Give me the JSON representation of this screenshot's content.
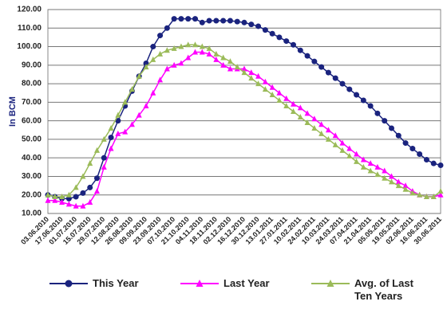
{
  "chart_data": {
    "type": "line",
    "y_label": "In BCM",
    "categories": [
      "03.06.2010",
      null,
      "17.06.2010",
      null,
      "01.07.2010",
      null,
      "15.07.2010",
      null,
      "29.07.2010",
      null,
      "12.08.2010",
      null,
      "26.08.2010",
      null,
      "09.09.2010",
      null,
      "23.09.2010",
      null,
      "07.10.2010",
      null,
      "21.10.2010",
      null,
      "04.11.2010",
      null,
      "18.11.2010",
      null,
      "02.12.2010",
      null,
      "16.12.2010",
      null,
      "30.12.2010",
      null,
      "13.01.2011",
      null,
      "27.01.2011",
      null,
      "10.02.2011",
      null,
      "24.02.2011",
      null,
      "10.03.2011",
      null,
      "24.03.2011",
      null,
      "07.04.2011",
      null,
      "21.04.2011",
      null,
      "05.05.2011",
      null,
      "19.05.2011",
      null,
      "02.06.2011",
      null,
      "16.06.2011",
      null,
      "30.06.2011"
    ],
    "series": [
      {
        "name": "This Year",
        "color": "#1a237e",
        "marker": "circle",
        "values": [
          20,
          19,
          18,
          18,
          19,
          21,
          24,
          29,
          40,
          51,
          60,
          68,
          76,
          84,
          91,
          100,
          106,
          110,
          115,
          115,
          115,
          115,
          113,
          114,
          114,
          114,
          114,
          113.5,
          113,
          112,
          111,
          109,
          107,
          105,
          103,
          101,
          98,
          95,
          92,
          89,
          86,
          83,
          80,
          77,
          74,
          71,
          68,
          64,
          60,
          56,
          52,
          48,
          45,
          42,
          39,
          37,
          36
        ]
      },
      {
        "name": "Last Year",
        "color": "#ff00ff",
        "marker": "triangle",
        "values": [
          17,
          17,
          16,
          15,
          14,
          14,
          16,
          22,
          35,
          45,
          53,
          54,
          58,
          63,
          68,
          75,
          82,
          88,
          90,
          91,
          94,
          97,
          97,
          96,
          93,
          90,
          88,
          88,
          88,
          86,
          84,
          81,
          78,
          75,
          72,
          69,
          67,
          64,
          61,
          58,
          55,
          52,
          48,
          45,
          42,
          39,
          37,
          35,
          33,
          30,
          27,
          25,
          22,
          20,
          19,
          19,
          20
        ]
      },
      {
        "name": "Avg. of Last Ten Years",
        "color": "#9bbb59",
        "marker": "triangle",
        "values": [
          20,
          19,
          19,
          20,
          24,
          30,
          37,
          44,
          50,
          56,
          63,
          70,
          77,
          84,
          89,
          93,
          96,
          98,
          99,
          100,
          101,
          101,
          100,
          99,
          96,
          94,
          92,
          89,
          86,
          83,
          80,
          77,
          74,
          71,
          68,
          65,
          62,
          59,
          56,
          53,
          50,
          47,
          44,
          41,
          38,
          35,
          33,
          31,
          29,
          27,
          25,
          23,
          21,
          20,
          19,
          19,
          22
        ]
      }
    ],
    "ylim": [
      10,
      120
    ],
    "yticks": [
      {
        "value": 10,
        "label": "10.00"
      },
      {
        "value": 20,
        "label": "20.00"
      },
      {
        "value": 30,
        "label": "30.00"
      },
      {
        "value": 40,
        "label": "40.00"
      },
      {
        "value": 50,
        "label": "50.00"
      },
      {
        "value": 60,
        "label": "60.00"
      },
      {
        "value": 70,
        "label": "70.00"
      },
      {
        "value": 80,
        "label": "80.00"
      },
      {
        "value": 90,
        "label": "90.00"
      },
      {
        "value": 100,
        "label": "100.00"
      },
      {
        "value": 110,
        "label": "110.00"
      },
      {
        "value": 120,
        "label": "120.00"
      }
    ],
    "grid": true
  }
}
